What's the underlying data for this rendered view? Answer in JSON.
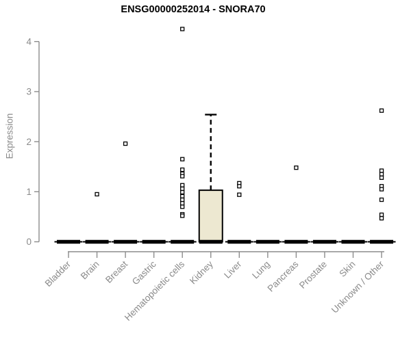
{
  "chart_data": {
    "type": "boxplot",
    "title": "ENSG00000252014 - SNORA70",
    "xlabel": "",
    "ylabel": "Expression",
    "ylim": [
      0,
      4
    ],
    "yticks": [
      0,
      1,
      2,
      3,
      4
    ],
    "grid": false,
    "legend": false,
    "categories": [
      "Bladder",
      "Brain",
      "Breast",
      "Gastric",
      "Hematopoietic cells",
      "Kidney",
      "Liver",
      "Lung",
      "Pancreas",
      "Prostate",
      "Skin",
      "Unknown / Other"
    ],
    "boxes": [
      {
        "category": "Bladder",
        "whisker_low": 0,
        "q1": 0,
        "median": 0,
        "q3": 0,
        "whisker_high": 0,
        "outliers": []
      },
      {
        "category": "Brain",
        "whisker_low": 0,
        "q1": 0,
        "median": 0,
        "q3": 0,
        "whisker_high": 0,
        "outliers": [
          0.95
        ]
      },
      {
        "category": "Breast",
        "whisker_low": 0,
        "q1": 0,
        "median": 0,
        "q3": 0,
        "whisker_high": 0,
        "outliers": [
          1.96
        ]
      },
      {
        "category": "Gastric",
        "whisker_low": 0,
        "q1": 0,
        "median": 0,
        "q3": 0,
        "whisker_high": 0,
        "outliers": []
      },
      {
        "category": "Hematopoietic cells",
        "whisker_low": 0,
        "q1": 0,
        "median": 0,
        "q3": 0,
        "whisker_high": 0,
        "outliers": [
          4.25,
          1.65,
          1.44,
          1.36,
          1.31,
          1.13,
          1.06,
          0.99,
          0.91,
          0.84,
          0.77,
          0.7,
          0.55,
          0.52
        ]
      },
      {
        "category": "Kidney",
        "whisker_low": 0,
        "q1": 0,
        "median": 0,
        "q3": 1.03,
        "whisker_high": 2.54,
        "outliers": []
      },
      {
        "category": "Liver",
        "whisker_low": 0,
        "q1": 0,
        "median": 0,
        "q3": 0,
        "whisker_high": 0,
        "outliers": [
          1.17,
          1.11,
          0.94
        ]
      },
      {
        "category": "Lung",
        "whisker_low": 0,
        "q1": 0,
        "median": 0,
        "q3": 0,
        "whisker_high": 0,
        "outliers": []
      },
      {
        "category": "Pancreas",
        "whisker_low": 0,
        "q1": 0,
        "median": 0,
        "q3": 0,
        "whisker_high": 0,
        "outliers": [
          1.48
        ]
      },
      {
        "category": "Prostate",
        "whisker_low": 0,
        "q1": 0,
        "median": 0,
        "q3": 0,
        "whisker_high": 0,
        "outliers": []
      },
      {
        "category": "Skin",
        "whisker_low": 0,
        "q1": 0,
        "median": 0,
        "q3": 0,
        "whisker_high": 0,
        "outliers": []
      },
      {
        "category": "Unknown / Other",
        "whisker_low": 0,
        "q1": 0,
        "median": 0,
        "q3": 0,
        "whisker_high": 0,
        "outliers": [
          2.62,
          1.42,
          1.35,
          1.28,
          1.11,
          1.05,
          0.84,
          0.54,
          0.47
        ]
      }
    ],
    "colors": {
      "background": "#ffffff",
      "box_fill": "#EDE8D1",
      "box_stroke": "#000000",
      "median": "#000000",
      "whisker": "#000000",
      "outlier_stroke": "#000000",
      "outlier_fill": "#ffffff",
      "axis": "#8C8C8C",
      "tick_label": "#8A8A8A",
      "title": "#000000"
    }
  }
}
